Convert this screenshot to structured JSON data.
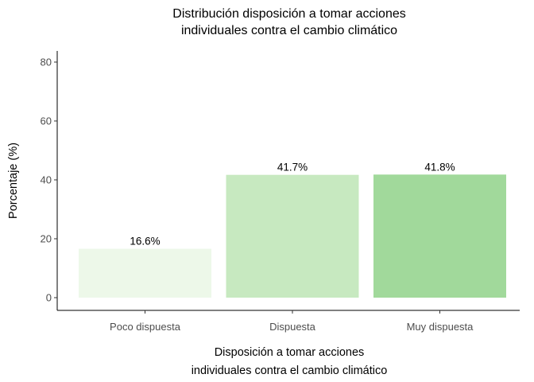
{
  "chart_data": {
    "type": "bar",
    "title": [
      "Distribución disposición a tomar acciones",
      "individuales contra el cambio climático"
    ],
    "xlabel": [
      "Disposición a tomar acciones",
      "individuales contra el cambio climático"
    ],
    "ylabel": "Porcentaje (%)",
    "categories": [
      "Poco dispuesta",
      "Dispuesta",
      "Muy dispuesta"
    ],
    "values": [
      16.6,
      41.7,
      41.8
    ],
    "data_labels": [
      "16.6%",
      "41.7%",
      "41.8%"
    ],
    "colors": [
      "#edf8e9",
      "#c7e9c0",
      "#a1d99b"
    ],
    "ylim": [
      0,
      84
    ],
    "yticks": [
      0,
      20,
      40,
      60,
      80
    ],
    "grid": false,
    "legend": "none"
  }
}
